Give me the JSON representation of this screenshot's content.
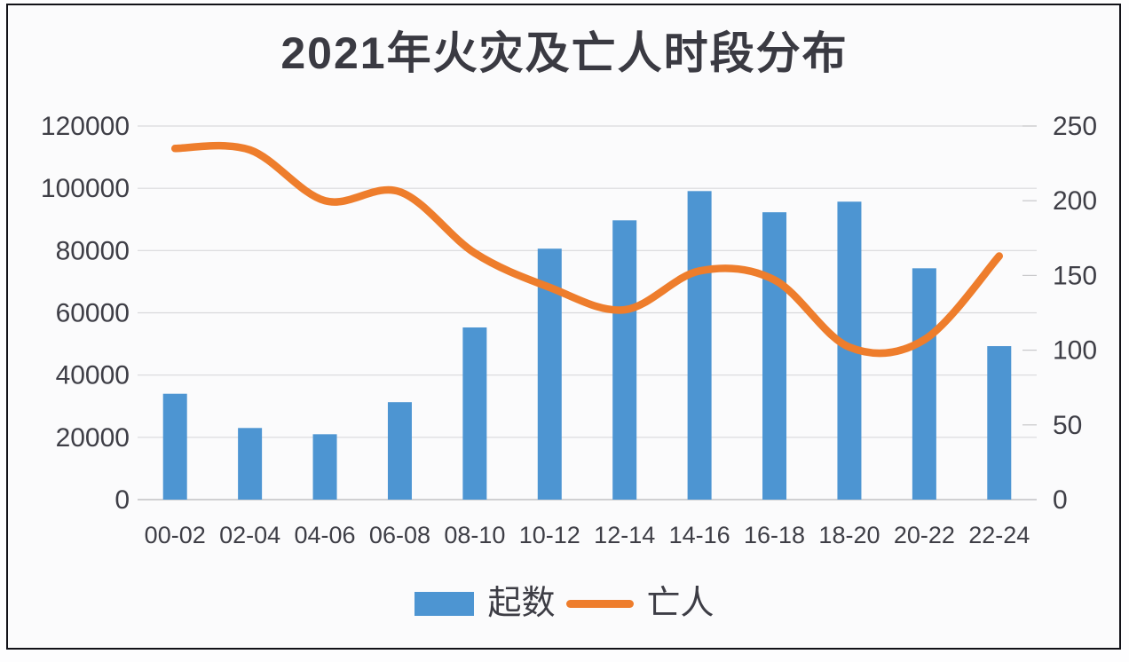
{
  "title": "2021年火灾及亡人时段分布",
  "legend": [
    {
      "label": "起数",
      "swatch": "bar-swatch",
      "color": "#4d95d2"
    },
    {
      "label": "亡人",
      "swatch": "line-swatch",
      "color": "#ee7d2c"
    }
  ],
  "colors": {
    "bar": "#4d95d2",
    "line": "#ee7d2c",
    "gridline": "#d9d9db",
    "axis_line": "#c2c2c4",
    "tick_mark": "#c8c8ca",
    "text": "#3e3e46",
    "title_text": "#3a3a42",
    "frame_border": "#121218"
  },
  "chart_data": {
    "type": "combo",
    "title": "2021年火灾及亡人时段分布",
    "categories": [
      "00-02",
      "02-04",
      "04-06",
      "06-08",
      "08-10",
      "10-12",
      "12-14",
      "14-16",
      "16-18",
      "18-20",
      "20-22",
      "22-24"
    ],
    "series": [
      {
        "name": "起数",
        "type": "bar",
        "axis": "left",
        "color": "#4d95d2",
        "values": [
          34000,
          23000,
          21000,
          31300,
          55300,
          80600,
          89700,
          99100,
          92300,
          95700,
          74300,
          49300
        ]
      },
      {
        "name": "亡人",
        "type": "line",
        "axis": "right",
        "color": "#ee7d2c",
        "smooth": true,
        "values": [
          235,
          234,
          200,
          206,
          165,
          142,
          127,
          153,
          147,
          102,
          107,
          163
        ]
      }
    ],
    "left_axis": {
      "min": 0,
      "max": 120000,
      "step": 20000,
      "ticks": [
        0,
        20000,
        40000,
        60000,
        80000,
        100000,
        120000
      ]
    },
    "right_axis": {
      "min": 0,
      "max": 250,
      "step": 50,
      "ticks": [
        0,
        50,
        100,
        150,
        200,
        250
      ]
    },
    "grid": true,
    "legend_position": "bottom"
  }
}
